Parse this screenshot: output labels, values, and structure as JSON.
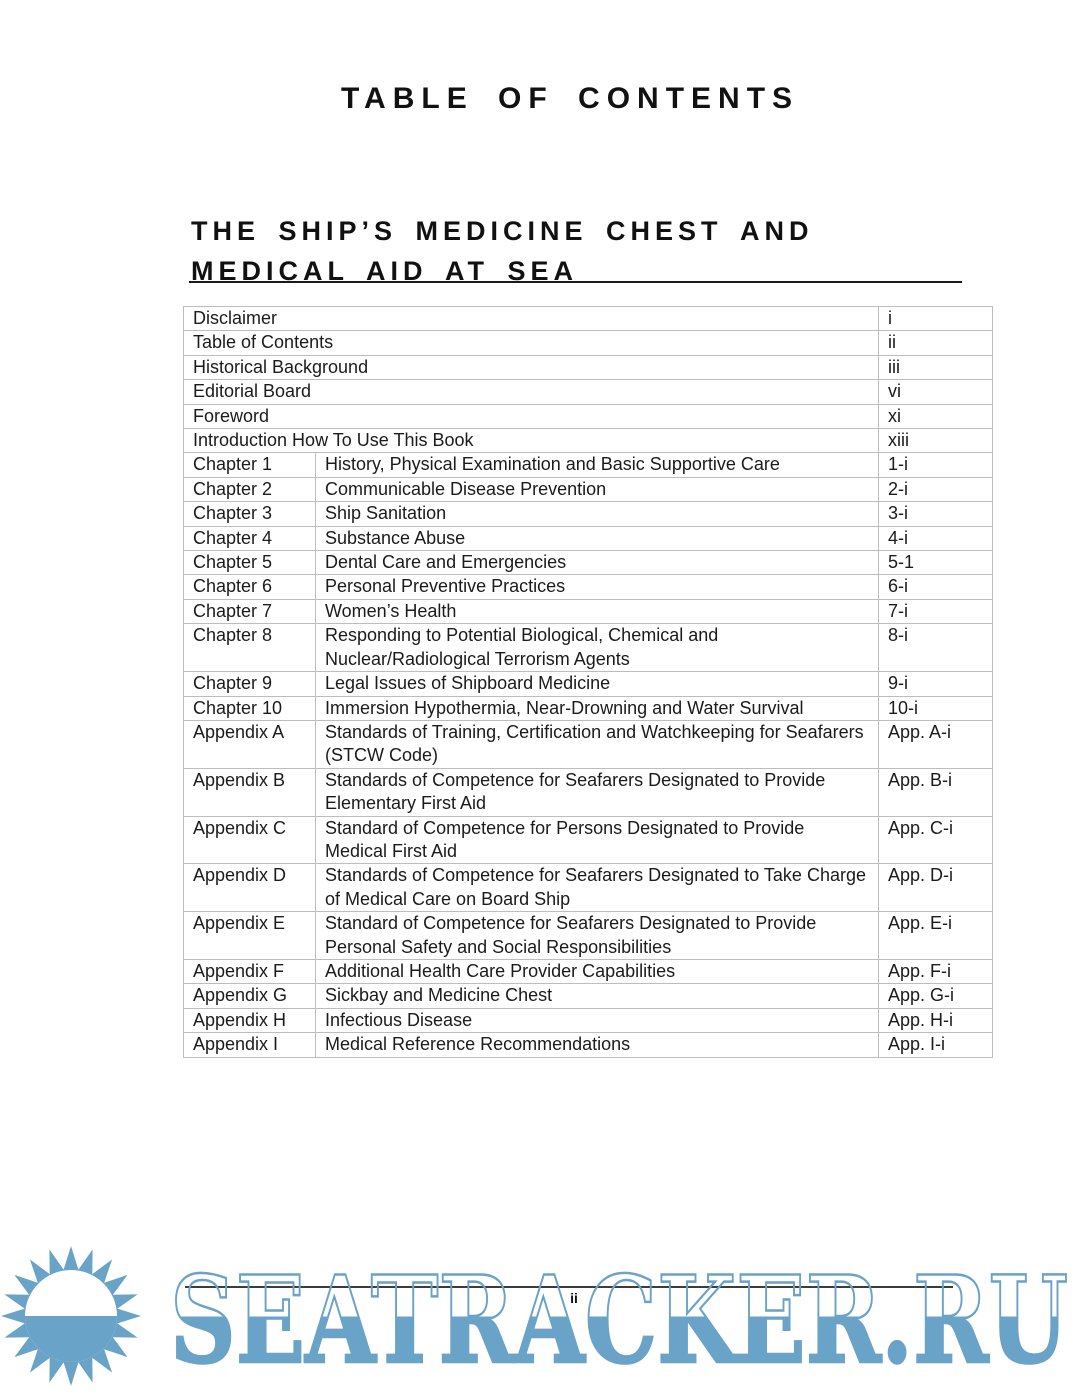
{
  "page": {
    "title": "TABLE OF CONTENTS",
    "book_title_line1": "THE SHIP’S MEDICINE CHEST AND",
    "book_title_line2": "MEDICAL AID AT SEA",
    "page_number": "ii"
  },
  "toc": {
    "rows": [
      {
        "title": "Disclaimer",
        "page": "i"
      },
      {
        "title": "Table of Contents",
        "page": "ii"
      },
      {
        "title": "Historical Background",
        "page": "iii"
      },
      {
        "title": "Editorial Board",
        "page": "vi"
      },
      {
        "title": "Foreword",
        "page": "xi"
      },
      {
        "title": "Introduction How To Use This Book",
        "page": "xiii"
      },
      {
        "label": "Chapter 1",
        "title": "History, Physical Examination and Basic Supportive Care",
        "page": "1-i"
      },
      {
        "label": "Chapter 2",
        "title": "Communicable Disease Prevention",
        "page": "2-i"
      },
      {
        "label": "Chapter 3",
        "title": "Ship Sanitation",
        "page": "3-i"
      },
      {
        "label": "Chapter 4",
        "title": "Substance Abuse",
        "page": "4-i"
      },
      {
        "label": "Chapter 5",
        "title": "Dental Care and Emergencies",
        "page": "5-1"
      },
      {
        "label": "Chapter 6",
        "title": "Personal Preventive Practices",
        "page": "6-i"
      },
      {
        "label": "Chapter 7",
        "title": "Women’s Health",
        "page": "7-i"
      },
      {
        "label": "Chapter 8",
        "title": "Responding to Potential Biological, Chemical and Nuclear/Radiological Terrorism Agents",
        "page": "8-i",
        "page_valign": "middle"
      },
      {
        "label": "Chapter 9",
        "title": "Legal Issues of Shipboard Medicine",
        "page": "9-i"
      },
      {
        "label": "Chapter 10",
        "title": "Immersion Hypothermia, Near-Drowning and Water Survival",
        "page": "10-i",
        "page_valign": "middle"
      },
      {
        "label": "Appendix A",
        "title": "Standards of Training, Certification and Watchkeeping for Seafarers (STCW Code)",
        "page": "App. A-i"
      },
      {
        "label": "Appendix B",
        "title": "Standards of Competence for Seafarers Designated to Provide Elementary First Aid",
        "page": "App. B-i"
      },
      {
        "label": "Appendix C",
        "title": "Standard of Competence for Persons Designated to Provide Medical First Aid",
        "page": "App. C-i"
      },
      {
        "label": "Appendix D",
        "title": "Standards of Competence for Seafarers Designated to Take Charge of Medical Care on Board Ship",
        "page": "App. D-i"
      },
      {
        "label": "Appendix E",
        "title": "Standard of Competence for Seafarers Designated to Provide Personal Safety and Social Responsibilities",
        "page": "App. E-i"
      },
      {
        "label": "Appendix F",
        "title": "Additional Health Care Provider Capabilities",
        "page": "App. F-i"
      },
      {
        "label": "Appendix G",
        "title": "Sickbay and Medicine Chest",
        "page": "App. G-i"
      },
      {
        "label": "Appendix H",
        "title": "Infectious Disease",
        "page": "App. H-i"
      },
      {
        "label": "Appendix I",
        "title": "Medical Reference Recommendations",
        "page": "App. I-i"
      }
    ]
  },
  "watermark": {
    "icon": "sun-icon",
    "text": "SEATRACKER.RU",
    "color": "#6AA3C8"
  }
}
